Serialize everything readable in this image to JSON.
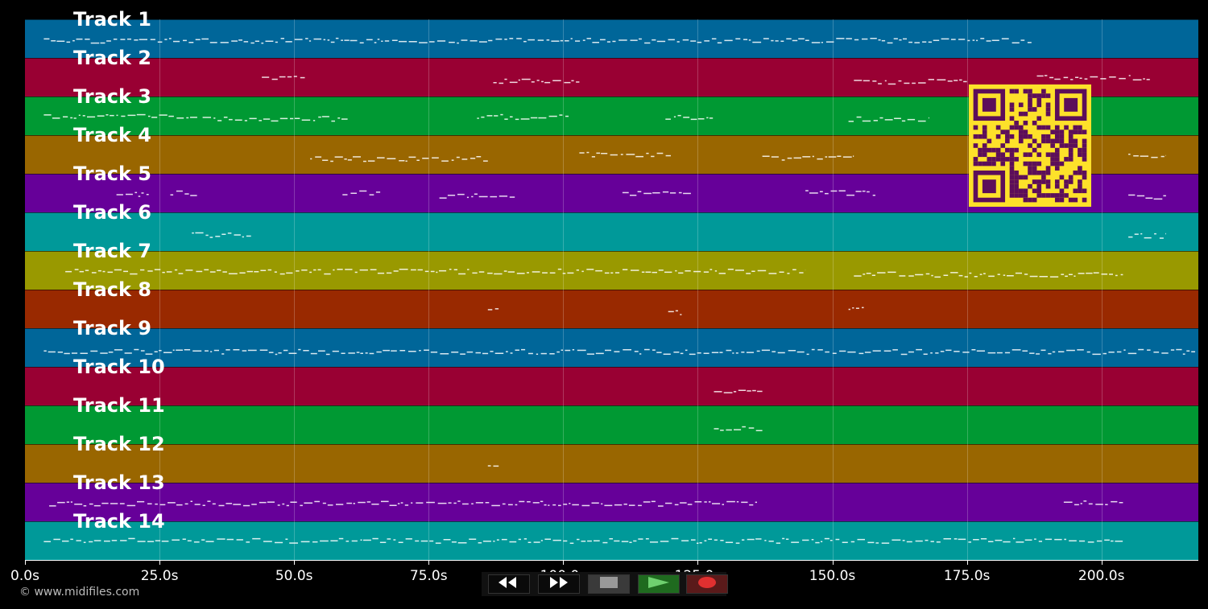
{
  "tracks": [
    {
      "label": "Track 1",
      "color": "#006699"
    },
    {
      "label": "Track 2",
      "color": "#990033"
    },
    {
      "label": "Track 3",
      "color": "#009933"
    },
    {
      "label": "Track 4",
      "color": "#996600"
    },
    {
      "label": "Track 5",
      "color": "#660099"
    },
    {
      "label": "Track 6",
      "color": "#009999"
    },
    {
      "label": "Track 7",
      "color": "#999900"
    },
    {
      "label": "Track 8",
      "color": "#992900"
    },
    {
      "label": "Track 9",
      "color": "#006699"
    },
    {
      "label": "Track 10",
      "color": "#990033"
    },
    {
      "label": "Track 11",
      "color": "#009933"
    },
    {
      "label": "Track 12",
      "color": "#996600"
    },
    {
      "label": "Track 13",
      "color": "#660099"
    },
    {
      "label": "Track 14",
      "color": "#009999"
    }
  ],
  "timeline": {
    "max_seconds": 218,
    "ticks": [
      "0.0s",
      "25.0s",
      "50.0s",
      "75.0s",
      "100.0s",
      "125.0s",
      "150.0s",
      "175.0s",
      "200.0s"
    ],
    "tick_values": [
      0,
      25,
      50,
      75,
      100,
      125,
      150,
      175,
      200
    ]
  },
  "credit": "© www.midifiles.com",
  "transport": {
    "buttons": [
      {
        "name": "rewind-button",
        "icon": "rewind-icon"
      },
      {
        "name": "fast-forward-button",
        "icon": "fast-forward-icon"
      },
      {
        "name": "stop-button",
        "icon": "stop-icon"
      },
      {
        "name": "play-button",
        "icon": "play-icon"
      },
      {
        "name": "record-button",
        "icon": "record-icon"
      }
    ]
  },
  "note_segments": [
    {
      "track": 0,
      "start": 3.5,
      "end": 187
    },
    {
      "track": 1,
      "start": 44,
      "end": 52
    },
    {
      "track": 1,
      "start": 87,
      "end": 103
    },
    {
      "track": 1,
      "start": 154,
      "end": 175
    },
    {
      "track": 1,
      "start": 188,
      "end": 209
    },
    {
      "track": 2,
      "start": 3.5,
      "end": 32
    },
    {
      "track": 2,
      "start": 33,
      "end": 60
    },
    {
      "track": 2,
      "start": 84,
      "end": 101
    },
    {
      "track": 2,
      "start": 119,
      "end": 128
    },
    {
      "track": 2,
      "start": 153,
      "end": 168
    },
    {
      "track": 3,
      "start": 53,
      "end": 86
    },
    {
      "track": 3,
      "start": 103,
      "end": 120
    },
    {
      "track": 3,
      "start": 137,
      "end": 154
    },
    {
      "track": 3,
      "start": 205,
      "end": 212
    },
    {
      "track": 4,
      "start": 17,
      "end": 23
    },
    {
      "track": 4,
      "start": 27,
      "end": 32
    },
    {
      "track": 4,
      "start": 59,
      "end": 66
    },
    {
      "track": 4,
      "start": 77,
      "end": 91
    },
    {
      "track": 4,
      "start": 111,
      "end": 124
    },
    {
      "track": 4,
      "start": 145,
      "end": 158
    },
    {
      "track": 4,
      "start": 205,
      "end": 212
    },
    {
      "track": 5,
      "start": 31,
      "end": 42
    },
    {
      "track": 5,
      "start": 205,
      "end": 212
    },
    {
      "track": 6,
      "start": 7.5,
      "end": 145
    },
    {
      "track": 6,
      "start": 154,
      "end": 204
    },
    {
      "track": 7,
      "start": 86,
      "end": 88
    },
    {
      "track": 7,
      "start": 119.5,
      "end": 122
    },
    {
      "track": 7,
      "start": 153,
      "end": 156
    },
    {
      "track": 8,
      "start": 3.5,
      "end": 218
    },
    {
      "track": 9,
      "start": 128,
      "end": 137
    },
    {
      "track": 10,
      "start": 128,
      "end": 137
    },
    {
      "track": 11,
      "start": 86,
      "end": 88
    },
    {
      "track": 12,
      "start": 4.5,
      "end": 136
    },
    {
      "track": 12,
      "start": 193,
      "end": 204
    },
    {
      "track": 13,
      "start": 3.5,
      "end": 204
    }
  ]
}
